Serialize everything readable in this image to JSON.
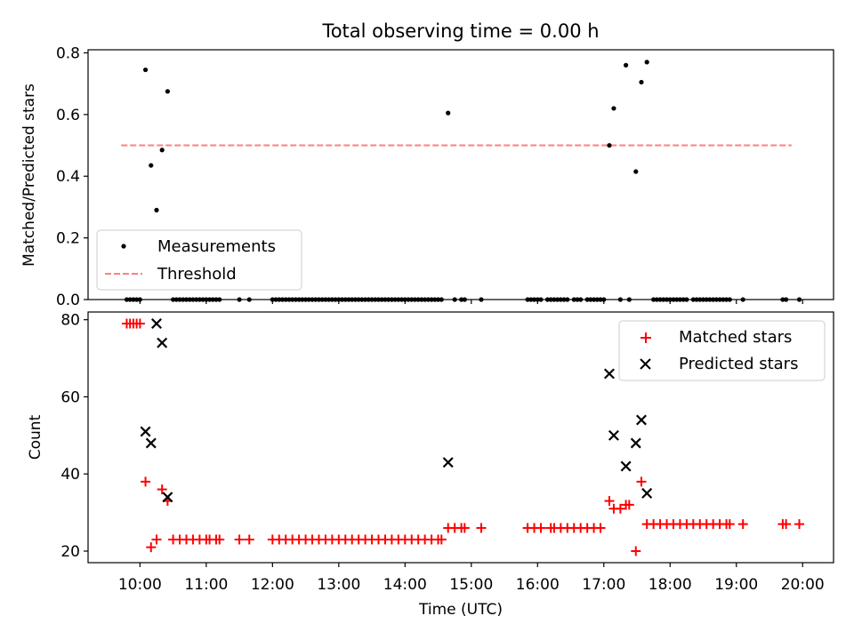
{
  "figure": {
    "title": "Total observing time = 0.00 h"
  },
  "chart_data": [
    {
      "type": "scatter",
      "title": "Total observing time = 0.00 h",
      "xlabel": "",
      "ylabel": "Matched/Predicted stars",
      "xlim": [
        "09:13",
        "20:28"
      ],
      "ylim": [
        0,
        0.81
      ],
      "yticks": [
        0.0,
        0.2,
        0.4,
        0.6,
        0.8
      ],
      "ytick_labels": [
        "0.0",
        "0.2",
        "0.4",
        "0.6",
        "0.8"
      ],
      "xtick_labels": [
        "10:00",
        "11:00",
        "12:00",
        "13:00",
        "14:00",
        "15:00",
        "16:00",
        "17:00",
        "18:00",
        "19:00",
        "20:00"
      ],
      "grid": false,
      "legend": {
        "position": "lower-left",
        "entries": [
          "Measurements",
          "Threshold"
        ]
      },
      "colors": {
        "measurements": "#000000",
        "threshold": "#ff7f7f"
      },
      "series": [
        {
          "name": "Measurements",
          "marker": "dot",
          "points": [
            [
              "09:48",
              0.0
            ],
            [
              "09:51",
              0.0
            ],
            [
              "09:54",
              0.0
            ],
            [
              "09:57",
              0.0
            ],
            [
              "10:00",
              0.0
            ],
            [
              "10:05",
              0.745
            ],
            [
              "10:10",
              0.435
            ],
            [
              "10:15",
              0.29
            ],
            [
              "10:20",
              0.485
            ],
            [
              "10:25",
              0.675
            ],
            [
              "10:30",
              0.0
            ],
            [
              "10:33",
              0.0
            ],
            [
              "10:36",
              0.0
            ],
            [
              "10:39",
              0.0
            ],
            [
              "10:42",
              0.0
            ],
            [
              "10:45",
              0.0
            ],
            [
              "10:48",
              0.0
            ],
            [
              "10:51",
              0.0
            ],
            [
              "10:54",
              0.0
            ],
            [
              "10:57",
              0.0
            ],
            [
              "11:00",
              0.0
            ],
            [
              "11:03",
              0.0
            ],
            [
              "11:06",
              0.0
            ],
            [
              "11:09",
              0.0
            ],
            [
              "11:12",
              0.0
            ],
            [
              "11:30",
              0.0
            ],
            [
              "11:39",
              0.0
            ],
            [
              "12:00",
              0.0
            ],
            [
              "12:03",
              0.0
            ],
            [
              "12:06",
              0.0
            ],
            [
              "12:09",
              0.0
            ],
            [
              "12:12",
              0.0
            ],
            [
              "12:15",
              0.0
            ],
            [
              "12:18",
              0.0
            ],
            [
              "12:21",
              0.0
            ],
            [
              "12:24",
              0.0
            ],
            [
              "12:27",
              0.0
            ],
            [
              "12:30",
              0.0
            ],
            [
              "12:33",
              0.0
            ],
            [
              "12:36",
              0.0
            ],
            [
              "12:39",
              0.0
            ],
            [
              "12:42",
              0.0
            ],
            [
              "12:45",
              0.0
            ],
            [
              "12:48",
              0.0
            ],
            [
              "12:51",
              0.0
            ],
            [
              "12:54",
              0.0
            ],
            [
              "12:57",
              0.0
            ],
            [
              "13:00",
              0.0
            ],
            [
              "13:03",
              0.0
            ],
            [
              "13:06",
              0.0
            ],
            [
              "13:09",
              0.0
            ],
            [
              "13:12",
              0.0
            ],
            [
              "13:15",
              0.0
            ],
            [
              "13:18",
              0.0
            ],
            [
              "13:21",
              0.0
            ],
            [
              "13:24",
              0.0
            ],
            [
              "13:27",
              0.0
            ],
            [
              "13:30",
              0.0
            ],
            [
              "13:33",
              0.0
            ],
            [
              "13:36",
              0.0
            ],
            [
              "13:39",
              0.0
            ],
            [
              "13:42",
              0.0
            ],
            [
              "13:45",
              0.0
            ],
            [
              "13:48",
              0.0
            ],
            [
              "13:51",
              0.0
            ],
            [
              "13:54",
              0.0
            ],
            [
              "13:57",
              0.0
            ],
            [
              "14:00",
              0.0
            ],
            [
              "14:03",
              0.0
            ],
            [
              "14:06",
              0.0
            ],
            [
              "14:09",
              0.0
            ],
            [
              "14:12",
              0.0
            ],
            [
              "14:15",
              0.0
            ],
            [
              "14:18",
              0.0
            ],
            [
              "14:21",
              0.0
            ],
            [
              "14:24",
              0.0
            ],
            [
              "14:27",
              0.0
            ],
            [
              "14:30",
              0.0
            ],
            [
              "14:33",
              0.0
            ],
            [
              "14:39",
              0.605
            ],
            [
              "14:45",
              0.0
            ],
            [
              "14:51",
              0.0
            ],
            [
              "14:54",
              0.0
            ],
            [
              "15:09",
              0.0
            ],
            [
              "15:51",
              0.0
            ],
            [
              "15:54",
              0.0
            ],
            [
              "15:57",
              0.0
            ],
            [
              "16:00",
              0.0
            ],
            [
              "16:03",
              0.0
            ],
            [
              "16:09",
              0.0
            ],
            [
              "16:12",
              0.0
            ],
            [
              "16:15",
              0.0
            ],
            [
              "16:18",
              0.0
            ],
            [
              "16:21",
              0.0
            ],
            [
              "16:24",
              0.0
            ],
            [
              "16:27",
              0.0
            ],
            [
              "16:33",
              0.0
            ],
            [
              "16:36",
              0.0
            ],
            [
              "16:39",
              0.0
            ],
            [
              "16:45",
              0.0
            ],
            [
              "16:48",
              0.0
            ],
            [
              "16:51",
              0.0
            ],
            [
              "16:54",
              0.0
            ],
            [
              "16:57",
              0.0
            ],
            [
              "17:00",
              0.0
            ],
            [
              "17:05",
              0.5
            ],
            [
              "17:09",
              0.62
            ],
            [
              "17:15",
              0.0
            ],
            [
              "17:20",
              0.76
            ],
            [
              "17:23",
              0.0
            ],
            [
              "17:29",
              0.415
            ],
            [
              "17:34",
              0.705
            ],
            [
              "17:39",
              0.77
            ],
            [
              "17:45",
              0.0
            ],
            [
              "17:48",
              0.0
            ],
            [
              "17:51",
              0.0
            ],
            [
              "17:54",
              0.0
            ],
            [
              "17:57",
              0.0
            ],
            [
              "18:00",
              0.0
            ],
            [
              "18:03",
              0.0
            ],
            [
              "18:06",
              0.0
            ],
            [
              "18:09",
              0.0
            ],
            [
              "18:12",
              0.0
            ],
            [
              "18:15",
              0.0
            ],
            [
              "18:21",
              0.0
            ],
            [
              "18:24",
              0.0
            ],
            [
              "18:27",
              0.0
            ],
            [
              "18:30",
              0.0
            ],
            [
              "18:33",
              0.0
            ],
            [
              "18:36",
              0.0
            ],
            [
              "18:39",
              0.0
            ],
            [
              "18:42",
              0.0
            ],
            [
              "18:45",
              0.0
            ],
            [
              "18:48",
              0.0
            ],
            [
              "18:51",
              0.0
            ],
            [
              "18:54",
              0.0
            ],
            [
              "19:06",
              0.0
            ],
            [
              "19:42",
              0.0
            ],
            [
              "19:45",
              0.0
            ],
            [
              "19:57",
              0.0
            ]
          ]
        },
        {
          "name": "Threshold",
          "style": "dashed-line",
          "points": [
            [
              "09:43",
              0.5
            ],
            [
              "19:50",
              0.5
            ]
          ]
        }
      ]
    },
    {
      "type": "scatter",
      "title": "",
      "xlabel": "Time (UTC)",
      "ylabel": "Count",
      "xlim": [
        "09:13",
        "20:28"
      ],
      "ylim": [
        17,
        82
      ],
      "yticks": [
        20,
        40,
        60,
        80
      ],
      "ytick_labels": [
        "20",
        "40",
        "60",
        "80"
      ],
      "xtick_labels": [
        "10:00",
        "11:00",
        "12:00",
        "13:00",
        "14:00",
        "15:00",
        "16:00",
        "17:00",
        "18:00",
        "19:00",
        "20:00"
      ],
      "grid": false,
      "legend": {
        "position": "top-right",
        "entries": [
          "Matched stars",
          "Predicted stars"
        ]
      },
      "colors": {
        "matched": "#ff0000",
        "predicted": "#000000"
      },
      "series": [
        {
          "name": "Matched stars",
          "marker": "plus",
          "points": [
            [
              "09:48",
              79
            ],
            [
              "09:51",
              79
            ],
            [
              "09:54",
              79
            ],
            [
              "09:57",
              79
            ],
            [
              "10:00",
              79
            ],
            [
              "10:05",
              38
            ],
            [
              "10:10",
              21
            ],
            [
              "10:15",
              23
            ],
            [
              "10:20",
              36
            ],
            [
              "10:25",
              33
            ],
            [
              "10:30",
              23
            ],
            [
              "10:36",
              23
            ],
            [
              "10:42",
              23
            ],
            [
              "10:48",
              23
            ],
            [
              "10:54",
              23
            ],
            [
              "11:00",
              23
            ],
            [
              "11:03",
              23
            ],
            [
              "11:09",
              23
            ],
            [
              "11:12",
              23
            ],
            [
              "11:30",
              23
            ],
            [
              "11:39",
              23
            ],
            [
              "12:00",
              23
            ],
            [
              "12:06",
              23
            ],
            [
              "12:12",
              23
            ],
            [
              "12:18",
              23
            ],
            [
              "12:24",
              23
            ],
            [
              "12:30",
              23
            ],
            [
              "12:36",
              23
            ],
            [
              "12:42",
              23
            ],
            [
              "12:48",
              23
            ],
            [
              "12:54",
              23
            ],
            [
              "13:00",
              23
            ],
            [
              "13:06",
              23
            ],
            [
              "13:12",
              23
            ],
            [
              "13:18",
              23
            ],
            [
              "13:24",
              23
            ],
            [
              "13:30",
              23
            ],
            [
              "13:36",
              23
            ],
            [
              "13:42",
              23
            ],
            [
              "13:48",
              23
            ],
            [
              "13:54",
              23
            ],
            [
              "14:00",
              23
            ],
            [
              "14:06",
              23
            ],
            [
              "14:12",
              23
            ],
            [
              "14:18",
              23
            ],
            [
              "14:24",
              23
            ],
            [
              "14:30",
              23
            ],
            [
              "14:33",
              23
            ],
            [
              "14:39",
              26
            ],
            [
              "14:45",
              26
            ],
            [
              "14:51",
              26
            ],
            [
              "14:54",
              26
            ],
            [
              "15:09",
              26
            ],
            [
              "15:51",
              26
            ],
            [
              "15:57",
              26
            ],
            [
              "16:03",
              26
            ],
            [
              "16:12",
              26
            ],
            [
              "16:15",
              26
            ],
            [
              "16:21",
              26
            ],
            [
              "16:27",
              26
            ],
            [
              "16:33",
              26
            ],
            [
              "16:39",
              26
            ],
            [
              "16:45",
              26
            ],
            [
              "16:51",
              26
            ],
            [
              "16:57",
              26
            ],
            [
              "17:05",
              33
            ],
            [
              "17:09",
              31
            ],
            [
              "17:15",
              31
            ],
            [
              "17:20",
              32
            ],
            [
              "17:23",
              32
            ],
            [
              "17:29",
              20
            ],
            [
              "17:34",
              38
            ],
            [
              "17:39",
              27
            ],
            [
              "17:45",
              27
            ],
            [
              "17:51",
              27
            ],
            [
              "17:57",
              27
            ],
            [
              "18:03",
              27
            ],
            [
              "18:09",
              27
            ],
            [
              "18:15",
              27
            ],
            [
              "18:21",
              27
            ],
            [
              "18:27",
              27
            ],
            [
              "18:33",
              27
            ],
            [
              "18:39",
              27
            ],
            [
              "18:45",
              27
            ],
            [
              "18:51",
              27
            ],
            [
              "18:54",
              27
            ],
            [
              "19:06",
              27
            ],
            [
              "19:42",
              27
            ],
            [
              "19:45",
              27
            ],
            [
              "19:57",
              27
            ]
          ]
        },
        {
          "name": "Predicted stars",
          "marker": "x",
          "points": [
            [
              "10:05",
              51
            ],
            [
              "10:10",
              48
            ],
            [
              "10:15",
              79
            ],
            [
              "10:20",
              74
            ],
            [
              "10:25",
              34
            ],
            [
              "14:39",
              43
            ],
            [
              "17:05",
              66
            ],
            [
              "17:09",
              50
            ],
            [
              "17:20",
              42
            ],
            [
              "17:29",
              48
            ],
            [
              "17:34",
              54
            ],
            [
              "17:39",
              35
            ]
          ]
        }
      ]
    }
  ]
}
